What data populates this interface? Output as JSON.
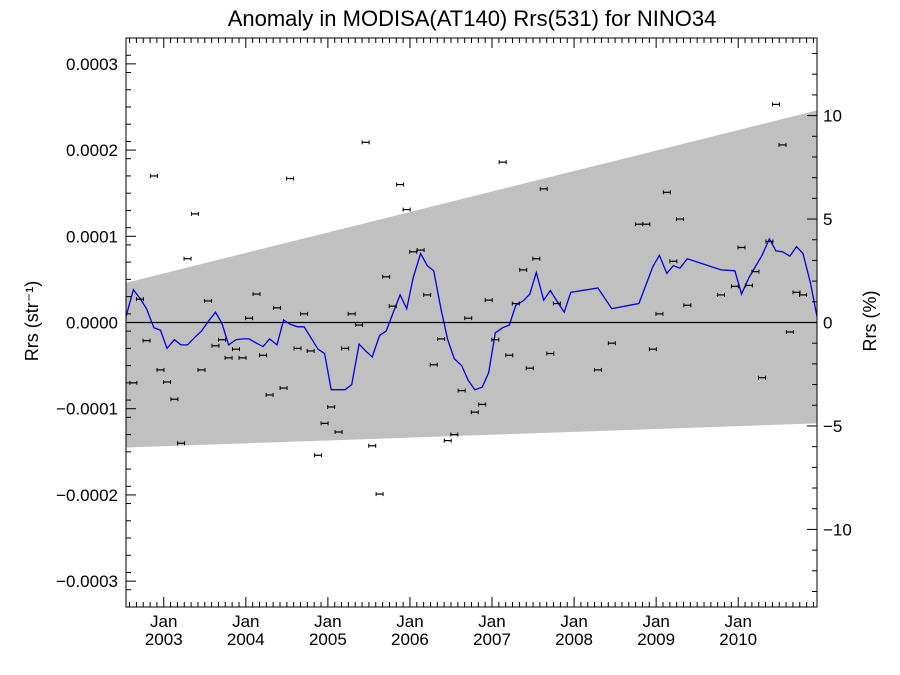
{
  "chart_data": {
    "type": "scatter",
    "title": "Anomaly in MODISA(AT140) Rrs(531) for NINO34",
    "ylabel_left": "Rrs (str⁻¹)",
    "ylabel_right": "Rrs (%)",
    "y_left_range": [
      -0.00033,
      0.00033
    ],
    "y_right_range": [
      -13.75,
      13.75
    ],
    "x_range": [
      2002.54,
      2010.96
    ],
    "y_left_ticks": [
      "0.0003",
      "0.0002",
      "0.0001",
      "0.0000",
      "−0.0001",
      "−0.0002",
      "−0.0003"
    ],
    "y_left_tick_values": [
      0.0003,
      0.0002,
      0.0001,
      0.0,
      -0.0001,
      -0.0002,
      -0.0003
    ],
    "y_right_ticks": [
      "10",
      "5",
      "0",
      "−5",
      "−10"
    ],
    "y_right_tick_values": [
      10,
      5,
      0,
      -5,
      -10
    ],
    "x_ticks": [
      {
        "month": "Jan",
        "year": "2003",
        "x": 2003.0
      },
      {
        "month": "Jan",
        "year": "2004",
        "x": 2004.0
      },
      {
        "month": "Jan",
        "year": "2005",
        "x": 2005.0
      },
      {
        "month": "Jan",
        "year": "2006",
        "x": 2006.0
      },
      {
        "month": "Jan",
        "year": "2007",
        "x": 2007.0
      },
      {
        "month": "Jan",
        "year": "2008",
        "x": 2008.0
      },
      {
        "month": "Jan",
        "year": "2009",
        "x": 2009.0
      },
      {
        "month": "Jan",
        "year": "2010",
        "x": 2010.0
      }
    ],
    "band": {
      "color": "#c0c0c0",
      "upper": [
        [
          2002.54,
          4.6e-05
        ],
        [
          2010.96,
          0.000246
        ]
      ],
      "lower": [
        [
          2002.54,
          -0.000145
        ],
        [
          2010.96,
          -0.000117
        ]
      ]
    },
    "zero_line_color": "#000000",
    "line_color": "#0000dd",
    "marker_color": "#000000",
    "line_series": [
      [
        2002.54,
        7e-06
      ],
      [
        2002.63,
        3.8e-05
      ],
      [
        2002.71,
        2.8e-05
      ],
      [
        2002.79,
        1.6e-05
      ],
      [
        2002.88,
        -6e-06
      ],
      [
        2002.96,
        -9e-06
      ],
      [
        2003.04,
        -3e-05
      ],
      [
        2003.13,
        -2e-05
      ],
      [
        2003.21,
        -2.6e-05
      ],
      [
        2003.29,
        -2.6e-05
      ],
      [
        2003.38,
        -1.7e-05
      ],
      [
        2003.46,
        -1e-05
      ],
      [
        2003.54,
        1e-06
      ],
      [
        2003.63,
        1.2e-05
      ],
      [
        2003.71,
        -1e-06
      ],
      [
        2003.79,
        -2.6e-05
      ],
      [
        2003.88,
        -2e-05
      ],
      [
        2003.96,
        -1.9e-05
      ],
      [
        2004.04,
        -1.9e-05
      ],
      [
        2004.13,
        -2.4e-05
      ],
      [
        2004.21,
        -2.8e-05
      ],
      [
        2004.29,
        -1.9e-05
      ],
      [
        2004.38,
        -2.6e-05
      ],
      [
        2004.46,
        3e-06
      ],
      [
        2004.54,
        -2e-06
      ],
      [
        2004.63,
        -5e-06
      ],
      [
        2004.71,
        -5e-06
      ],
      [
        2004.79,
        -1.7e-05
      ],
      [
        2004.88,
        -3.1e-05
      ],
      [
        2004.96,
        -3.6e-05
      ],
      [
        2005.04,
        -7.8e-05
      ],
      [
        2005.13,
        -7.8e-05
      ],
      [
        2005.21,
        -7.8e-05
      ],
      [
        2005.29,
        -7.2e-05
      ],
      [
        2005.38,
        -2.5e-05
      ],
      [
        2005.46,
        -3.3e-05
      ],
      [
        2005.54,
        -4e-05
      ],
      [
        2005.63,
        -1.5e-05
      ],
      [
        2005.71,
        -1e-05
      ],
      [
        2005.79,
        1e-05
      ],
      [
        2005.88,
        3.2e-05
      ],
      [
        2005.96,
        1.6e-05
      ],
      [
        2006.04,
        5.2e-05
      ],
      [
        2006.13,
        8e-05
      ],
      [
        2006.21,
        6.6e-05
      ],
      [
        2006.29,
        6e-05
      ],
      [
        2006.38,
        1.5e-05
      ],
      [
        2006.46,
        -2e-05
      ],
      [
        2006.54,
        -4.2e-05
      ],
      [
        2006.63,
        -5e-05
      ],
      [
        2006.71,
        -6.7e-05
      ],
      [
        2006.79,
        -7.8e-05
      ],
      [
        2006.88,
        -7.5e-05
      ],
      [
        2006.96,
        -5.8e-05
      ],
      [
        2007.04,
        -1.2e-05
      ],
      [
        2007.13,
        -6e-06
      ],
      [
        2007.21,
        -3e-06
      ],
      [
        2007.29,
        2e-05
      ],
      [
        2007.38,
        2.5e-05
      ],
      [
        2007.46,
        3.3e-05
      ],
      [
        2007.54,
        5.8e-05
      ],
      [
        2007.63,
        2.6e-05
      ],
      [
        2007.71,
        3.7e-05
      ],
      [
        2007.79,
        2.5e-05
      ],
      [
        2007.88,
        1.2e-05
      ],
      [
        2007.96,
        3.5e-05
      ],
      [
        2008.29,
        4e-05
      ],
      [
        2008.46,
        1.6e-05
      ],
      [
        2008.79,
        2.2e-05
      ],
      [
        2008.96,
        6.5e-05
      ],
      [
        2009.04,
        7.8e-05
      ],
      [
        2009.13,
        5.7e-05
      ],
      [
        2009.21,
        6.6e-05
      ],
      [
        2009.29,
        6.3e-05
      ],
      [
        2009.38,
        7.4e-05
      ],
      [
        2009.79,
        6.1e-05
      ],
      [
        2009.96,
        6e-05
      ],
      [
        2010.04,
        3.3e-05
      ],
      [
        2010.13,
        5.2e-05
      ],
      [
        2010.21,
        6.5e-05
      ],
      [
        2010.29,
        7.8e-05
      ],
      [
        2010.38,
        9.7e-05
      ],
      [
        2010.46,
        8.3e-05
      ],
      [
        2010.54,
        8.2e-05
      ],
      [
        2010.63,
        7.7e-05
      ],
      [
        2010.71,
        8.8e-05
      ],
      [
        2010.79,
        8e-05
      ],
      [
        2010.88,
        4.6e-05
      ],
      [
        2010.96,
        7e-06
      ]
    ],
    "points": [
      [
        2002.63,
        -7e-05
      ],
      [
        2002.71,
        2.7e-05
      ],
      [
        2002.79,
        -2.1e-05
      ],
      [
        2002.88,
        0.00017
      ],
      [
        2002.96,
        -5.5e-05
      ],
      [
        2003.04,
        -6.9e-05
      ],
      [
        2003.13,
        -8.9e-05
      ],
      [
        2003.21,
        -0.00014
      ],
      [
        2003.29,
        7.4e-05
      ],
      [
        2003.38,
        0.000126
      ],
      [
        2003.46,
        -5.5e-05
      ],
      [
        2003.54,
        2.5e-05
      ],
      [
        2003.63,
        -2.7e-05
      ],
      [
        2003.71,
        -2e-05
      ],
      [
        2003.79,
        -4.1e-05
      ],
      [
        2003.88,
        -3.1e-05
      ],
      [
        2003.96,
        -4.1e-05
      ],
      [
        2004.04,
        5e-06
      ],
      [
        2004.13,
        3.3e-05
      ],
      [
        2004.21,
        -3.8e-05
      ],
      [
        2004.29,
        -8.4e-05
      ],
      [
        2004.38,
        1.7e-05
      ],
      [
        2004.46,
        -7.6e-05
      ],
      [
        2004.54,
        0.000167
      ],
      [
        2004.63,
        -3e-05
      ],
      [
        2004.71,
        1e-05
      ],
      [
        2004.79,
        -3.3e-05
      ],
      [
        2004.88,
        -0.000154
      ],
      [
        2004.96,
        -0.000117
      ],
      [
        2005.04,
        -9.8e-05
      ],
      [
        2005.13,
        -0.000127
      ],
      [
        2005.21,
        -3e-05
      ],
      [
        2005.29,
        1e-05
      ],
      [
        2005.38,
        -3e-06
      ],
      [
        2005.46,
        0.000209
      ],
      [
        2005.54,
        -0.000143
      ],
      [
        2005.63,
        -0.000199
      ],
      [
        2005.71,
        5.3e-05
      ],
      [
        2005.79,
        1.9e-05
      ],
      [
        2005.88,
        0.00016
      ],
      [
        2005.96,
        0.000131
      ],
      [
        2006.04,
        8.2e-05
      ],
      [
        2006.13,
        8.4e-05
      ],
      [
        2006.21,
        3.2e-05
      ],
      [
        2006.29,
        -4.9e-05
      ],
      [
        2006.38,
        -1.9e-05
      ],
      [
        2006.46,
        -0.000137
      ],
      [
        2006.54,
        -0.00013
      ],
      [
        2006.63,
        -7.9e-05
      ],
      [
        2006.71,
        5e-06
      ],
      [
        2006.79,
        -0.000104
      ],
      [
        2006.88,
        -9.5e-05
      ],
      [
        2006.96,
        2.6e-05
      ],
      [
        2007.04,
        -2e-05
      ],
      [
        2007.13,
        0.000186
      ],
      [
        2007.21,
        -3.8e-05
      ],
      [
        2007.29,
        2.2e-05
      ],
      [
        2007.38,
        6.1e-05
      ],
      [
        2007.46,
        -5.3e-05
      ],
      [
        2007.54,
        7.4e-05
      ],
      [
        2007.63,
        0.000155
      ],
      [
        2007.71,
        -3.6e-05
      ],
      [
        2007.79,
        2.2e-05
      ],
      [
        2008.29,
        -5.5e-05
      ],
      [
        2008.46,
        -2.4e-05
      ],
      [
        2008.79,
        0.000114
      ],
      [
        2008.88,
        0.000114
      ],
      [
        2008.96,
        -3.1e-05
      ],
      [
        2009.04,
        1e-05
      ],
      [
        2009.13,
        0.000151
      ],
      [
        2009.21,
        7.1e-05
      ],
      [
        2009.29,
        0.00012
      ],
      [
        2009.38,
        2e-05
      ],
      [
        2009.79,
        3.2e-05
      ],
      [
        2009.96,
        4.2e-05
      ],
      [
        2010.04,
        8.7e-05
      ],
      [
        2010.13,
        4.3e-05
      ],
      [
        2010.21,
        5.9e-05
      ],
      [
        2010.29,
        -6.4e-05
      ],
      [
        2010.38,
        9.4e-05
      ],
      [
        2010.46,
        0.000253
      ],
      [
        2010.54,
        0.000206
      ],
      [
        2010.63,
        -1.1e-05
      ],
      [
        2010.71,
        3.5e-05
      ],
      [
        2010.79,
        3.2e-05
      ]
    ]
  }
}
